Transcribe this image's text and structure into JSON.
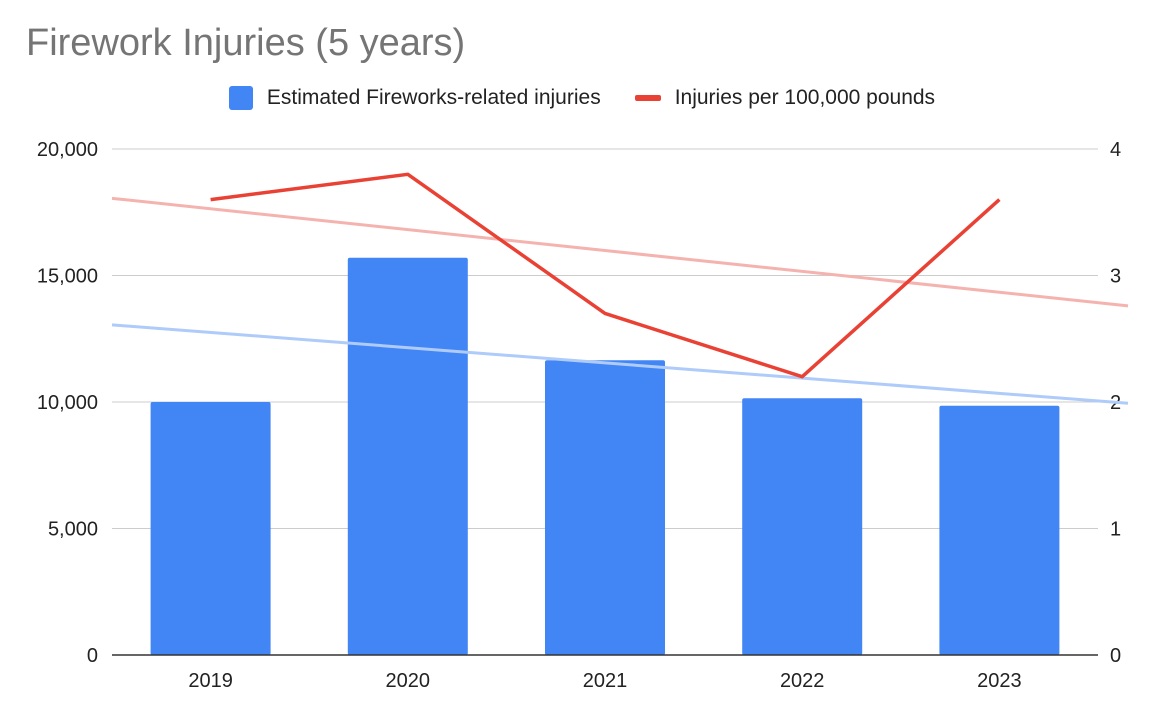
{
  "chart_data": {
    "type": "bar",
    "title": "Firework Injuries (5 years)",
    "categories": [
      "2019",
      "2020",
      "2021",
      "2022",
      "2023"
    ],
    "series": [
      {
        "name": "Estimated Fireworks-related injuries",
        "type": "bar",
        "axis": "left",
        "color": "#4285f4",
        "values": [
          10000,
          15700,
          11650,
          10150,
          9850
        ]
      },
      {
        "name": "Injuries per 100,000 pounds",
        "type": "line",
        "axis": "right",
        "color": "#e94235",
        "values": [
          3.6,
          3.8,
          2.7,
          2.2,
          3.6
        ]
      }
    ],
    "trendlines": [
      {
        "series": "Estimated Fireworks-related injuries",
        "axis": "left",
        "color": "#aecbfa",
        "start": 13050,
        "end": 9950
      },
      {
        "series": "Injuries per 100,000 pounds",
        "axis": "right",
        "color": "#f4b3ae",
        "start": 3.61,
        "end": 2.76
      }
    ],
    "y_left": {
      "min": 0,
      "max": 20000,
      "ticks": [
        "0",
        "5,000",
        "10,000",
        "15,000",
        "20,000"
      ]
    },
    "y_right": {
      "min": 0,
      "max": 4,
      "ticks": [
        "0",
        "1",
        "2",
        "3",
        "4"
      ]
    },
    "xlabel": "",
    "ylabel": "",
    "legend": "top-center",
    "grid": true
  }
}
